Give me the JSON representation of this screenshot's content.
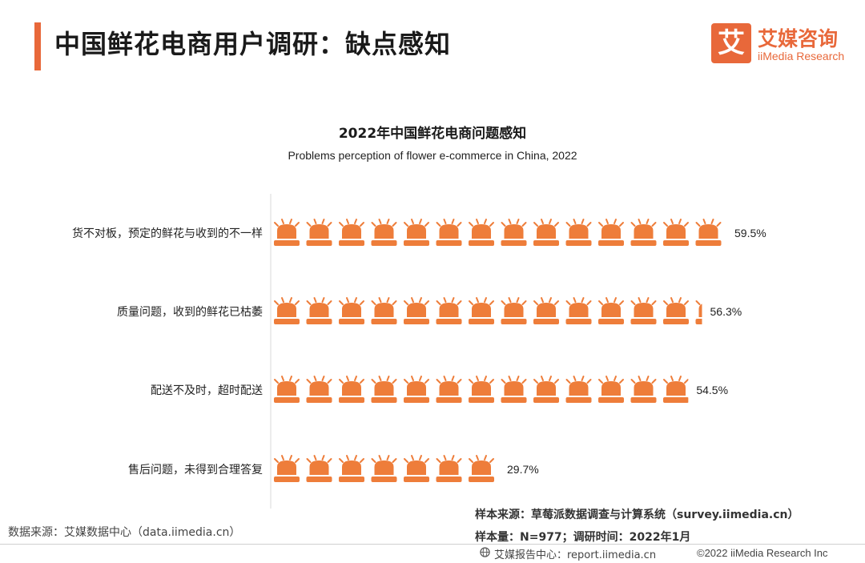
{
  "header": {
    "title": "中国鲜花电商用户调研：缺点感知",
    "accent_color": "#e8683a"
  },
  "logo": {
    "mark": "艾",
    "name_cn": "艾媒咨询",
    "name_en": "iiMedia Research"
  },
  "chart_data": {
    "type": "bar",
    "title": "2022年中国鲜花电商问题感知",
    "subtitle": "Problems perception of flower e-commerce in China, 2022",
    "orientation": "horizontal",
    "mark_style": "alarm-light-icons",
    "categories": [
      "货不对板，预定的鲜花与收到的不一样",
      "质量问题，收到的鲜花已枯萎",
      "配送不及时，超时配送",
      "售后问题，未得到合理答复"
    ],
    "values": [
      59.5,
      56.3,
      54.5,
      29.7
    ],
    "value_labels": [
      "59.5%",
      "56.3%",
      "54.5%",
      "29.7%"
    ],
    "unit": "%",
    "color": "#ee7d3a",
    "grid": false,
    "legend": "none"
  },
  "sources": {
    "data_source": "数据来源：艾媒数据中心（data.iimedia.cn）",
    "sample_source": "样本来源：草莓派数据调查与计算系统（survey.iimedia.cn）",
    "sample_size": "样本量：N=977；调研时间：2022年1月"
  },
  "footer": {
    "report_center": "艾媒报告中心：report.iimedia.cn",
    "copyright": "©2022 iiMedia Research Inc",
    "globe_icon": "globe-icon"
  }
}
